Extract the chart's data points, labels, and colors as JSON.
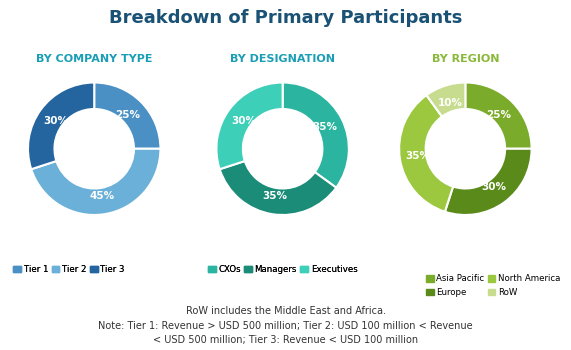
{
  "title": "Breakdown of Primary Participants",
  "title_color": "#1a5276",
  "title_fontsize": 13,
  "subtitle1": "BY COMPANY TYPE",
  "subtitle2": "BY DESIGNATION",
  "subtitle3": "BY REGION",
  "subtitle_color12": "#1a9eb5",
  "subtitle_color3": "#8ab83a",
  "subtitle_fontsize": 8,
  "pie1_values": [
    25,
    45,
    30
  ],
  "pie1_labels": [
    "25%",
    "45%",
    "30%"
  ],
  "pie1_colors": [
    "#4a90c4",
    "#6ab0d8",
    "#2465a0"
  ],
  "pie1_legend": [
    "Tier 1",
    "Tier 2",
    "Tier 3"
  ],
  "pie1_legend_colors": [
    "#4a90c4",
    "#6ab0d8",
    "#2465a0"
  ],
  "pie2_values": [
    35,
    35,
    30
  ],
  "pie2_labels": [
    "35%",
    "35%",
    "30%"
  ],
  "pie2_colors": [
    "#2bb5a0",
    "#1a8c78",
    "#3dcfb8"
  ],
  "pie2_legend": [
    "CXOs",
    "Managers",
    "Executives"
  ],
  "pie2_legend_colors": [
    "#2bb5a0",
    "#1a8c78",
    "#3dcfb8"
  ],
  "pie3_values": [
    25,
    30,
    35,
    10
  ],
  "pie3_labels": [
    "25%",
    "30%",
    "35%",
    "10%"
  ],
  "pie3_colors": [
    "#7aab2a",
    "#5a8a1a",
    "#9cc840",
    "#c8dc90"
  ],
  "pie3_legend": [
    "Asia Pacific",
    "Europe",
    "North America",
    "RoW"
  ],
  "pie3_legend_colors": [
    "#7aab2a",
    "#5a8a1a",
    "#9cc840",
    "#c8dc90"
  ],
  "footnote1": "RoW includes the Middle East and Africa.",
  "footnote2": "Note: Tier 1: Revenue > USD 500 million; Tier 2: USD 100 million < Revenue",
  "footnote3": "< USD 500 million; Tier 3: Revenue < USD 100 million",
  "footnote_fontsize": 7,
  "bg_color": "#ffffff"
}
